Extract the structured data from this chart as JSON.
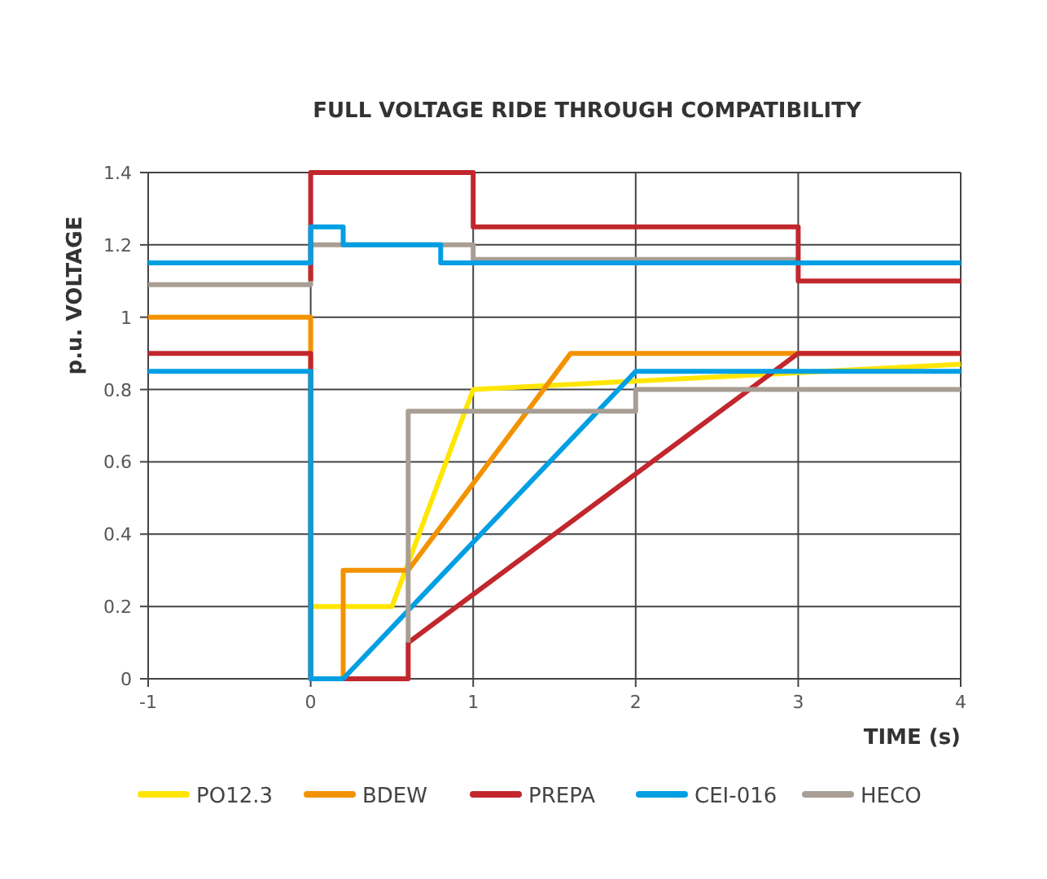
{
  "chart_data": {
    "type": "line",
    "title": "FULL VOLTAGE RIDE THROUGH COMPATIBILITY",
    "xlabel": "TIME (s)",
    "ylabel": "p.u. VOLTAGE",
    "xlim": [
      -1,
      4
    ],
    "xticks": [
      -1,
      0,
      1,
      2,
      3,
      4
    ],
    "ylim": [
      0,
      1.4
    ],
    "yticks": [
      0,
      0.2,
      0.4,
      0.6,
      0.8,
      1,
      1.2,
      1.4
    ],
    "grid": true,
    "legend": "bottom",
    "marker": "none",
    "line_style": "solid",
    "series": [
      {
        "name": "PO12.3",
        "color": "#ffe600",
        "x": [
          0,
          0.5,
          1,
          4
        ],
        "values": [
          0.2,
          0.2,
          0.8,
          0.87
        ]
      },
      {
        "name": "BDEW",
        "color": "#f39200",
        "x": [
          -1,
          0,
          0,
          0.2,
          0.2,
          0.6,
          1.6,
          4
        ],
        "values": [
          1,
          1,
          0,
          0,
          0.3,
          0.3,
          0.9,
          0.9
        ]
      },
      {
        "color": "#a89e94",
        "x": [
          -1,
          0,
          0,
          1,
          1,
          3
        ],
        "values": [
          1.09,
          1.09,
          1.2,
          1.2,
          1.16,
          1.16
        ]
      },
      {
        "name": "PREPA",
        "color": "#c1272d",
        "x": [
          -1,
          0,
          0,
          0.6,
          0.6,
          3,
          4
        ],
        "values": [
          0.9,
          0.9,
          0,
          0,
          0.1,
          0.9,
          0.9
        ]
      },
      {
        "color": "#c1272d",
        "x": [
          0,
          0,
          1,
          1,
          3,
          3,
          4
        ],
        "values": [
          1.1,
          1.4,
          1.4,
          1.25,
          1.25,
          1.1,
          1.1
        ]
      },
      {
        "name": "CEI-016",
        "color": "#009fe3",
        "x": [
          -1,
          0,
          0,
          0.2,
          2,
          4
        ],
        "values": [
          0.85,
          0.85,
          0,
          0,
          0.85,
          0.85
        ]
      },
      {
        "color": "#009fe3",
        "x": [
          -1,
          0,
          0,
          0.2,
          0.2,
          0.8,
          0.8,
          4
        ],
        "values": [
          1.15,
          1.15,
          1.25,
          1.25,
          1.2,
          1.2,
          1.15,
          1.15
        ]
      },
      {
        "name": "HECO",
        "color": "#a89e94",
        "x": [
          0.6,
          0.6,
          2,
          2,
          4
        ],
        "values": [
          0.1,
          0.74,
          0.74,
          0.8,
          0.8
        ]
      }
    ]
  }
}
